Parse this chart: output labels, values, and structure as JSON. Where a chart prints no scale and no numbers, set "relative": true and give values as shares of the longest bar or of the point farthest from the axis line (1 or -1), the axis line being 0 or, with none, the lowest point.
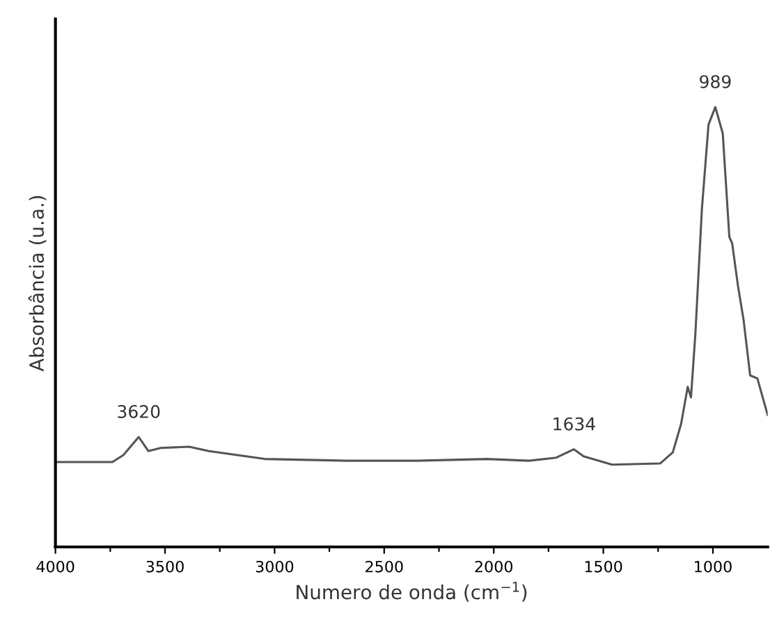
{
  "chart_data": {
    "type": "line",
    "relative": true,
    "xlabel": "Numero de onda (cm$^{−1}$)",
    "ylabel": "Absorbância (u.a.)",
    "xlim": [
      4000,
      750
    ],
    "xticks": [
      4000,
      {
        "value": 3750,
        "label": null
      },
      3500,
      {
        "value": 3250,
        "label": null
      },
      3000,
      {
        "value": 2750,
        "label": null
      },
      2500,
      {
        "value": 2250,
        "label": null
      },
      2000,
      {
        "value": 1750,
        "label": null
      },
      1500,
      {
        "value": 1250,
        "label": null
      },
      1000
    ],
    "tick_labels": "x",
    "grid": false,
    "legend": false,
    "marker": "none",
    "line_style": "solid",
    "x": [
      4000,
      3740,
      3690,
      3620,
      3576,
      3520,
      3390,
      3300,
      3045,
      2665,
      2350,
      2030,
      1840,
      1715,
      1634,
      1590,
      1460,
      1240,
      1183,
      1145,
      1115,
      1100,
      1080,
      1050,
      1020,
      989,
      955,
      925,
      912,
      886,
      860,
      830,
      797,
      765,
      750
    ],
    "series": [
      {
        "color": "#555555",
        "values": [
          0.193,
          0.193,
          0.209,
          0.25,
          0.218,
          0.225,
          0.228,
          0.218,
          0.2,
          0.196,
          0.196,
          0.2,
          0.196,
          0.203,
          0.222,
          0.206,
          0.187,
          0.19,
          0.215,
          0.28,
          0.364,
          0.34,
          0.484,
          0.77,
          0.96,
          1.0,
          0.94,
          0.705,
          0.69,
          0.595,
          0.516,
          0.39,
          0.383,
          0.326,
          0.3
        ]
      }
    ],
    "annotations": [
      {
        "text": "3620",
        "x": 3620,
        "y": 0.25
      },
      {
        "text": "1634",
        "x": 1634,
        "y": 0.222
      },
      {
        "text": "989",
        "x": 989,
        "y": 1.0
      }
    ]
  }
}
